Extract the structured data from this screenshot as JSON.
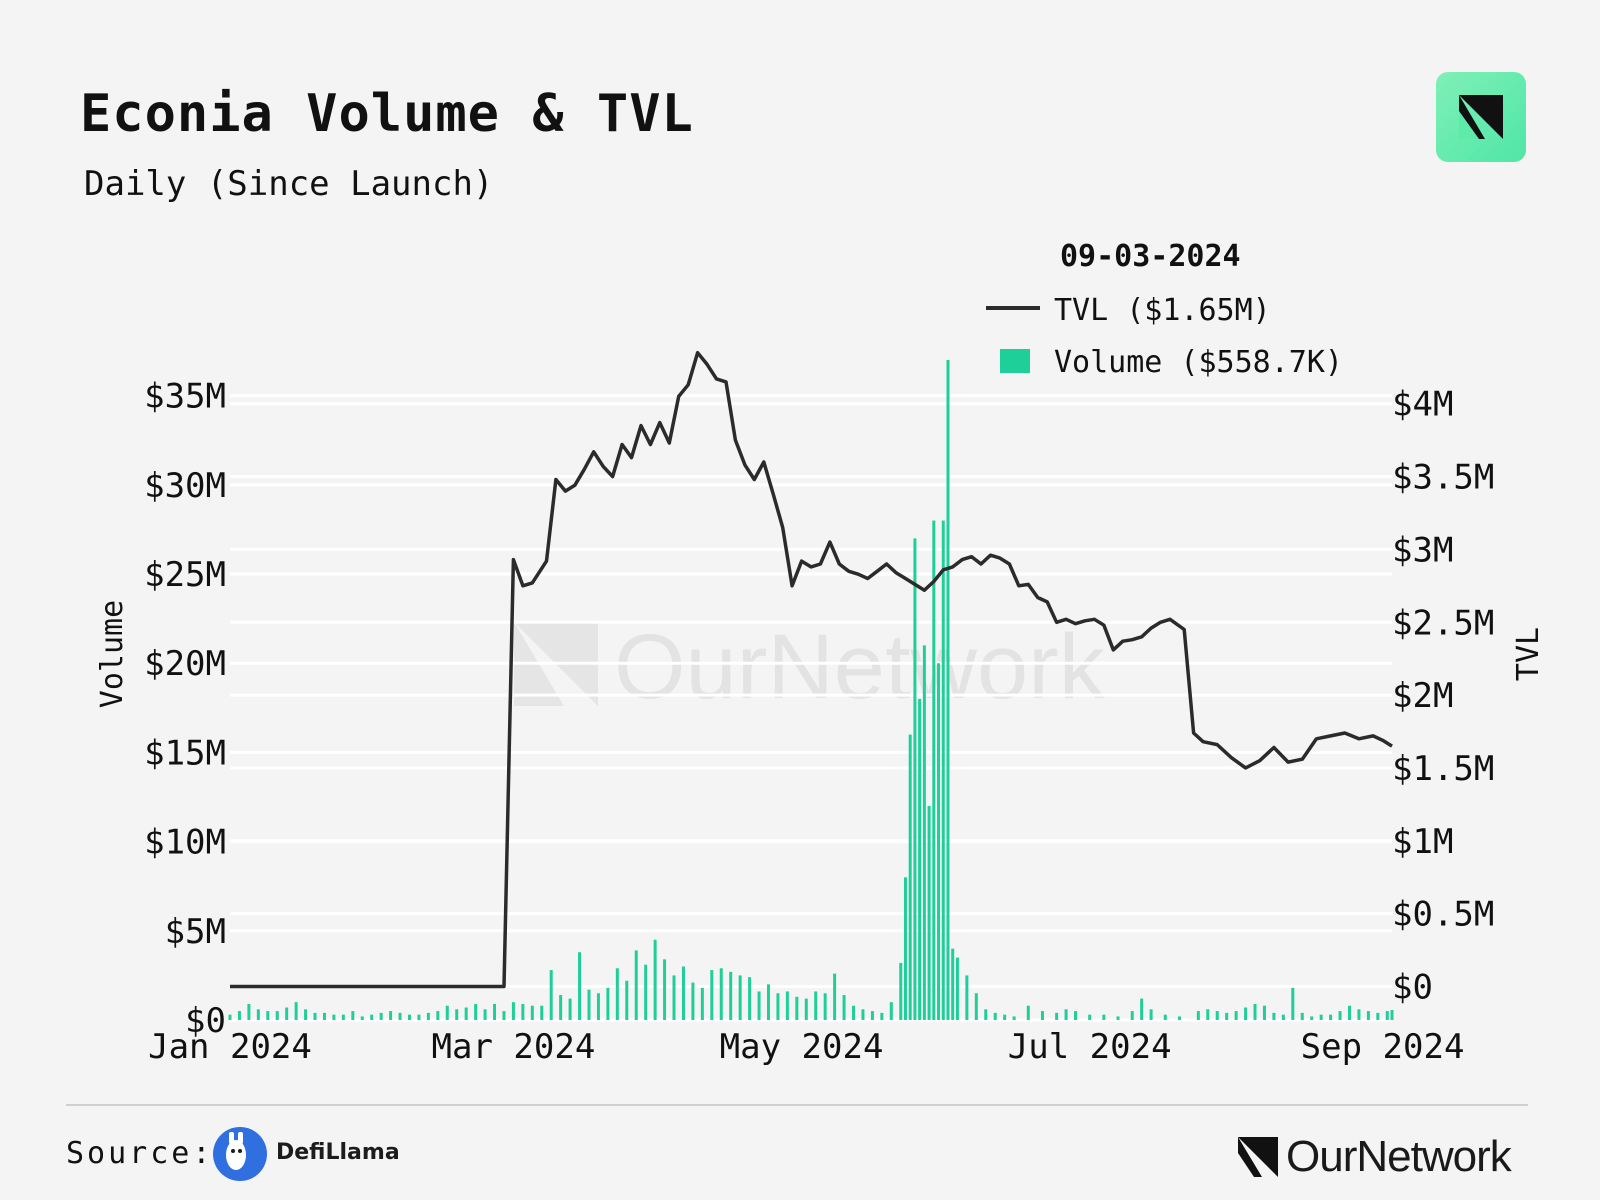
{
  "header": {
    "title": "Econia Volume & TVL",
    "subtitle": "Daily (Since Launch)"
  },
  "footer": {
    "source_label": "Source:",
    "source_name": "DefiLlama",
    "brand": "OurNetwork"
  },
  "watermark": {
    "text": "OurNetwork"
  },
  "colors": {
    "background": "#f4f4f4",
    "tvl_line": "#2b2b2b",
    "volume_bar": "#1fcf9a",
    "grid": "#ffffff",
    "brand_badge": "#5eeaa9"
  },
  "icons": {
    "brand_logo": "ournetwork-logo-icon",
    "source_logo": "defillama-llama-icon"
  },
  "chart_data": {
    "type": "bar+line",
    "title": "Econia Volume & TVL",
    "subtitle": "Daily (Since Launch)",
    "legend_title": "09-03-2024",
    "legend_position": "top-right",
    "grid": true,
    "x_type": "date",
    "xlim": [
      "2024-01-01",
      "2024-09-03"
    ],
    "x_ticks": [
      {
        "date": "2024-01-01",
        "label": "Jan 2024"
      },
      {
        "date": "2024-03-01",
        "label": "Mar 2024"
      },
      {
        "date": "2024-05-01",
        "label": "May 2024"
      },
      {
        "date": "2024-07-01",
        "label": "Jul 2024"
      },
      {
        "date": "2024-09-01",
        "label": "Sep 2024"
      }
    ],
    "y_left": {
      "label": "Volume",
      "range": [
        0,
        37000000
      ],
      "ticks": [
        {
          "value": 0,
          "label": "$0"
        },
        {
          "value": 5000000,
          "label": "$5M"
        },
        {
          "value": 10000000,
          "label": "$10M"
        },
        {
          "value": 15000000,
          "label": "$15M"
        },
        {
          "value": 20000000,
          "label": "$20M"
        },
        {
          "value": 25000000,
          "label": "$25M"
        },
        {
          "value": 30000000,
          "label": "$30M"
        },
        {
          "value": 35000000,
          "label": "$35M"
        }
      ]
    },
    "y_right": {
      "label": "TVL",
      "range": [
        -230000,
        4300000
      ],
      "ticks": [
        {
          "value": 0,
          "label": "$0"
        },
        {
          "value": 500000,
          "label": "$0.5M"
        },
        {
          "value": 1000000,
          "label": "$1M"
        },
        {
          "value": 1500000,
          "label": "$1.5M"
        },
        {
          "value": 2000000,
          "label": "$2M"
        },
        {
          "value": 2500000,
          "label": "$2.5M"
        },
        {
          "value": 3000000,
          "label": "$3M"
        },
        {
          "value": 3500000,
          "label": "$3.5M"
        },
        {
          "value": 4000000,
          "label": "$4M"
        }
      ]
    },
    "series": [
      {
        "name": "TVL ($1.65M)",
        "type": "line",
        "axis": "right",
        "points": [
          [
            "2024-01-01",
            0
          ],
          [
            "2024-02-28",
            0
          ],
          [
            "2024-03-01",
            2.93
          ],
          [
            "2024-03-03",
            2.75
          ],
          [
            "2024-03-05",
            2.77
          ],
          [
            "2024-03-08",
            2.92
          ],
          [
            "2024-03-10",
            3.48
          ],
          [
            "2024-03-12",
            3.4
          ],
          [
            "2024-03-14",
            3.44
          ],
          [
            "2024-03-16",
            3.55
          ],
          [
            "2024-03-18",
            3.67
          ],
          [
            "2024-03-20",
            3.57
          ],
          [
            "2024-03-22",
            3.5
          ],
          [
            "2024-03-24",
            3.72
          ],
          [
            "2024-03-26",
            3.63
          ],
          [
            "2024-03-28",
            3.85
          ],
          [
            "2024-03-30",
            3.72
          ],
          [
            "2024-04-01",
            3.87
          ],
          [
            "2024-04-03",
            3.73
          ],
          [
            "2024-04-05",
            4.05
          ],
          [
            "2024-04-07",
            4.13
          ],
          [
            "2024-04-09",
            4.35
          ],
          [
            "2024-04-11",
            4.27
          ],
          [
            "2024-04-13",
            4.17
          ],
          [
            "2024-04-15",
            4.15
          ],
          [
            "2024-04-17",
            3.75
          ],
          [
            "2024-04-19",
            3.58
          ],
          [
            "2024-04-21",
            3.48
          ],
          [
            "2024-04-23",
            3.6
          ],
          [
            "2024-04-25",
            3.38
          ],
          [
            "2024-04-27",
            3.15
          ],
          [
            "2024-04-29",
            2.75
          ],
          [
            "2024-05-01",
            2.92
          ],
          [
            "2024-05-03",
            2.88
          ],
          [
            "2024-05-05",
            2.9
          ],
          [
            "2024-05-07",
            3.05
          ],
          [
            "2024-05-09",
            2.9
          ],
          [
            "2024-05-11",
            2.85
          ],
          [
            "2024-05-13",
            2.83
          ],
          [
            "2024-05-15",
            2.8
          ],
          [
            "2024-05-17",
            2.85
          ],
          [
            "2024-05-19",
            2.9
          ],
          [
            "2024-05-21",
            2.84
          ],
          [
            "2024-05-23",
            2.8
          ],
          [
            "2024-05-25",
            2.76
          ],
          [
            "2024-05-27",
            2.72
          ],
          [
            "2024-05-29",
            2.78
          ],
          [
            "2024-05-31",
            2.86
          ],
          [
            "2024-06-02",
            2.88
          ],
          [
            "2024-06-04",
            2.93
          ],
          [
            "2024-06-06",
            2.95
          ],
          [
            "2024-06-08",
            2.9
          ],
          [
            "2024-06-10",
            2.96
          ],
          [
            "2024-06-12",
            2.94
          ],
          [
            "2024-06-14",
            2.9
          ],
          [
            "2024-06-16",
            2.75
          ],
          [
            "2024-06-18",
            2.76
          ],
          [
            "2024-06-20",
            2.67
          ],
          [
            "2024-06-22",
            2.64
          ],
          [
            "2024-06-24",
            2.5
          ],
          [
            "2024-06-26",
            2.52
          ],
          [
            "2024-06-28",
            2.49
          ],
          [
            "2024-06-30",
            2.51
          ],
          [
            "2024-07-02",
            2.52
          ],
          [
            "2024-07-04",
            2.48
          ],
          [
            "2024-07-06",
            2.31
          ],
          [
            "2024-07-08",
            2.37
          ],
          [
            "2024-07-10",
            2.38
          ],
          [
            "2024-07-12",
            2.4
          ],
          [
            "2024-07-14",
            2.46
          ],
          [
            "2024-07-16",
            2.5
          ],
          [
            "2024-07-18",
            2.52
          ],
          [
            "2024-07-21",
            2.45
          ],
          [
            "2024-07-23",
            1.74
          ],
          [
            "2024-07-25",
            1.68
          ],
          [
            "2024-07-28",
            1.66
          ],
          [
            "2024-07-31",
            1.57
          ],
          [
            "2024-08-03",
            1.5
          ],
          [
            "2024-08-06",
            1.55
          ],
          [
            "2024-08-09",
            1.64
          ],
          [
            "2024-08-12",
            1.54
          ],
          [
            "2024-08-15",
            1.56
          ],
          [
            "2024-08-18",
            1.7
          ],
          [
            "2024-08-21",
            1.72
          ],
          [
            "2024-08-24",
            1.74
          ],
          [
            "2024-08-27",
            1.7
          ],
          [
            "2024-08-30",
            1.72
          ],
          [
            "2024-09-01",
            1.69
          ],
          [
            "2024-09-03",
            1.65
          ]
        ],
        "point_unit": "$M"
      },
      {
        "name": "Volume ($558.7K)",
        "type": "bar",
        "axis": "left",
        "bars": [
          [
            "2024-01-01",
            0.3
          ],
          [
            "2024-01-03",
            0.5
          ],
          [
            "2024-01-05",
            0.9
          ],
          [
            "2024-01-07",
            0.6
          ],
          [
            "2024-01-09",
            0.5
          ],
          [
            "2024-01-11",
            0.5
          ],
          [
            "2024-01-13",
            0.7
          ],
          [
            "2024-01-15",
            1.0
          ],
          [
            "2024-01-17",
            0.6
          ],
          [
            "2024-01-19",
            0.4
          ],
          [
            "2024-01-21",
            0.4
          ],
          [
            "2024-01-23",
            0.3
          ],
          [
            "2024-01-25",
            0.3
          ],
          [
            "2024-01-27",
            0.5
          ],
          [
            "2024-01-29",
            0.2
          ],
          [
            "2024-01-31",
            0.3
          ],
          [
            "2024-02-02",
            0.4
          ],
          [
            "2024-02-04",
            0.5
          ],
          [
            "2024-02-06",
            0.4
          ],
          [
            "2024-02-08",
            0.3
          ],
          [
            "2024-02-10",
            0.3
          ],
          [
            "2024-02-12",
            0.4
          ],
          [
            "2024-02-14",
            0.5
          ],
          [
            "2024-02-16",
            0.8
          ],
          [
            "2024-02-18",
            0.6
          ],
          [
            "2024-02-20",
            0.7
          ],
          [
            "2024-02-22",
            0.9
          ],
          [
            "2024-02-24",
            0.6
          ],
          [
            "2024-02-26",
            0.9
          ],
          [
            "2024-02-28",
            0.5
          ],
          [
            "2024-03-01",
            1.0
          ],
          [
            "2024-03-03",
            0.9
          ],
          [
            "2024-03-05",
            0.8
          ],
          [
            "2024-03-07",
            0.8
          ],
          [
            "2024-03-09",
            2.8
          ],
          [
            "2024-03-11",
            1.4
          ],
          [
            "2024-03-13",
            1.2
          ],
          [
            "2024-03-15",
            3.8
          ],
          [
            "2024-03-17",
            1.7
          ],
          [
            "2024-03-19",
            1.5
          ],
          [
            "2024-03-21",
            1.8
          ],
          [
            "2024-03-23",
            2.9
          ],
          [
            "2024-03-25",
            2.2
          ],
          [
            "2024-03-27",
            3.9
          ],
          [
            "2024-03-29",
            3.1
          ],
          [
            "2024-03-31",
            4.5
          ],
          [
            "2024-04-02",
            3.4
          ],
          [
            "2024-04-04",
            2.5
          ],
          [
            "2024-04-06",
            3.0
          ],
          [
            "2024-04-08",
            2.1
          ],
          [
            "2024-04-10",
            1.8
          ],
          [
            "2024-04-12",
            2.8
          ],
          [
            "2024-04-14",
            2.9
          ],
          [
            "2024-04-16",
            2.7
          ],
          [
            "2024-04-18",
            2.5
          ],
          [
            "2024-04-20",
            2.4
          ],
          [
            "2024-04-22",
            1.6
          ],
          [
            "2024-04-24",
            2.0
          ],
          [
            "2024-04-26",
            1.5
          ],
          [
            "2024-04-28",
            1.6
          ],
          [
            "2024-04-30",
            1.3
          ],
          [
            "2024-05-02",
            1.2
          ],
          [
            "2024-05-04",
            1.6
          ],
          [
            "2024-05-06",
            1.5
          ],
          [
            "2024-05-08",
            2.6
          ],
          [
            "2024-05-10",
            1.4
          ],
          [
            "2024-05-12",
            0.8
          ],
          [
            "2024-05-14",
            0.6
          ],
          [
            "2024-05-16",
            0.5
          ],
          [
            "2024-05-18",
            0.4
          ],
          [
            "2024-05-20",
            1.0
          ],
          [
            "2024-05-22",
            3.2
          ],
          [
            "2024-05-23",
            8.0
          ],
          [
            "2024-05-24",
            16.0
          ],
          [
            "2024-05-25",
            27.0
          ],
          [
            "2024-05-26",
            18.0
          ],
          [
            "2024-05-27",
            21.0
          ],
          [
            "2024-05-28",
            12.0
          ],
          [
            "2024-05-29",
            28.0
          ],
          [
            "2024-05-30",
            20.0
          ],
          [
            "2024-05-31",
            28.0
          ],
          [
            "2024-06-01",
            37.0
          ],
          [
            "2024-06-02",
            4.0
          ],
          [
            "2024-06-03",
            3.5
          ],
          [
            "2024-06-05",
            2.5
          ],
          [
            "2024-06-07",
            1.5
          ],
          [
            "2024-06-09",
            0.6
          ],
          [
            "2024-06-11",
            0.4
          ],
          [
            "2024-06-13",
            0.3
          ],
          [
            "2024-06-15",
            0.2
          ],
          [
            "2024-06-18",
            0.8
          ],
          [
            "2024-06-21",
            0.5
          ],
          [
            "2024-06-24",
            0.4
          ],
          [
            "2024-06-26",
            0.6
          ],
          [
            "2024-06-28",
            0.5
          ],
          [
            "2024-07-01",
            0.3
          ],
          [
            "2024-07-04",
            0.3
          ],
          [
            "2024-07-07",
            0.2
          ],
          [
            "2024-07-10",
            0.5
          ],
          [
            "2024-07-12",
            1.2
          ],
          [
            "2024-07-14",
            0.6
          ],
          [
            "2024-07-17",
            0.3
          ],
          [
            "2024-07-20",
            0.2
          ],
          [
            "2024-07-24",
            0.5
          ],
          [
            "2024-07-26",
            0.6
          ],
          [
            "2024-07-28",
            0.5
          ],
          [
            "2024-07-30",
            0.4
          ],
          [
            "2024-08-01",
            0.5
          ],
          [
            "2024-08-03",
            0.7
          ],
          [
            "2024-08-05",
            0.9
          ],
          [
            "2024-08-07",
            0.8
          ],
          [
            "2024-08-09",
            0.4
          ],
          [
            "2024-08-11",
            0.3
          ],
          [
            "2024-08-13",
            1.8
          ],
          [
            "2024-08-15",
            0.4
          ],
          [
            "2024-08-17",
            0.2
          ],
          [
            "2024-08-19",
            0.3
          ],
          [
            "2024-08-21",
            0.3
          ],
          [
            "2024-08-23",
            0.5
          ],
          [
            "2024-08-25",
            0.8
          ],
          [
            "2024-08-27",
            0.6
          ],
          [
            "2024-08-29",
            0.5
          ],
          [
            "2024-08-31",
            0.4
          ],
          [
            "2024-09-02",
            0.5
          ],
          [
            "2024-09-03",
            0.56
          ]
        ],
        "bar_unit": "$M"
      }
    ]
  }
}
